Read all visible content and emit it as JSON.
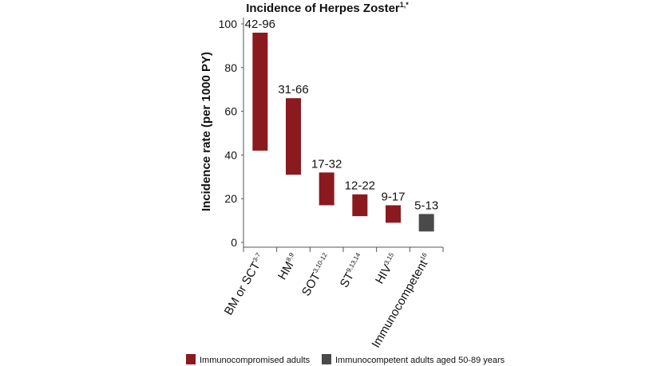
{
  "chart_data": {
    "type": "range-bar",
    "title": "Incidence of Herpes Zoster",
    "title_sup": "1,*",
    "y_label": "Incidence rate (per 1000 PY)",
    "categories": [
      "BM or SCT",
      "HM",
      "SOT",
      "ST",
      "HIV",
      "Immunocompetent"
    ],
    "category_sups": [
      "3-7",
      "8,9",
      "3,10-12",
      "9,13,14",
      "3,15",
      "16"
    ],
    "low": [
      42,
      31,
      17,
      12,
      9,
      5
    ],
    "high": [
      96,
      66,
      32,
      22,
      17,
      13
    ],
    "value_labels": [
      "42-96",
      "31-66",
      "17-32",
      "12-22",
      "9-17",
      "5-13"
    ],
    "colors": [
      "#8b1a1f",
      "#8b1a1f",
      "#8b1a1f",
      "#8b1a1f",
      "#8b1a1f",
      "#4a4a4a"
    ],
    "ylim": [
      0,
      100
    ],
    "yticks": [
      0,
      20,
      40,
      60,
      80,
      100
    ],
    "legend": [
      {
        "name": "Immunocompromised adults",
        "color": "#8b1a1f"
      },
      {
        "name": "Immunocompetent adults aged 50-89 years",
        "color": "#4a4a4a"
      }
    ]
  }
}
